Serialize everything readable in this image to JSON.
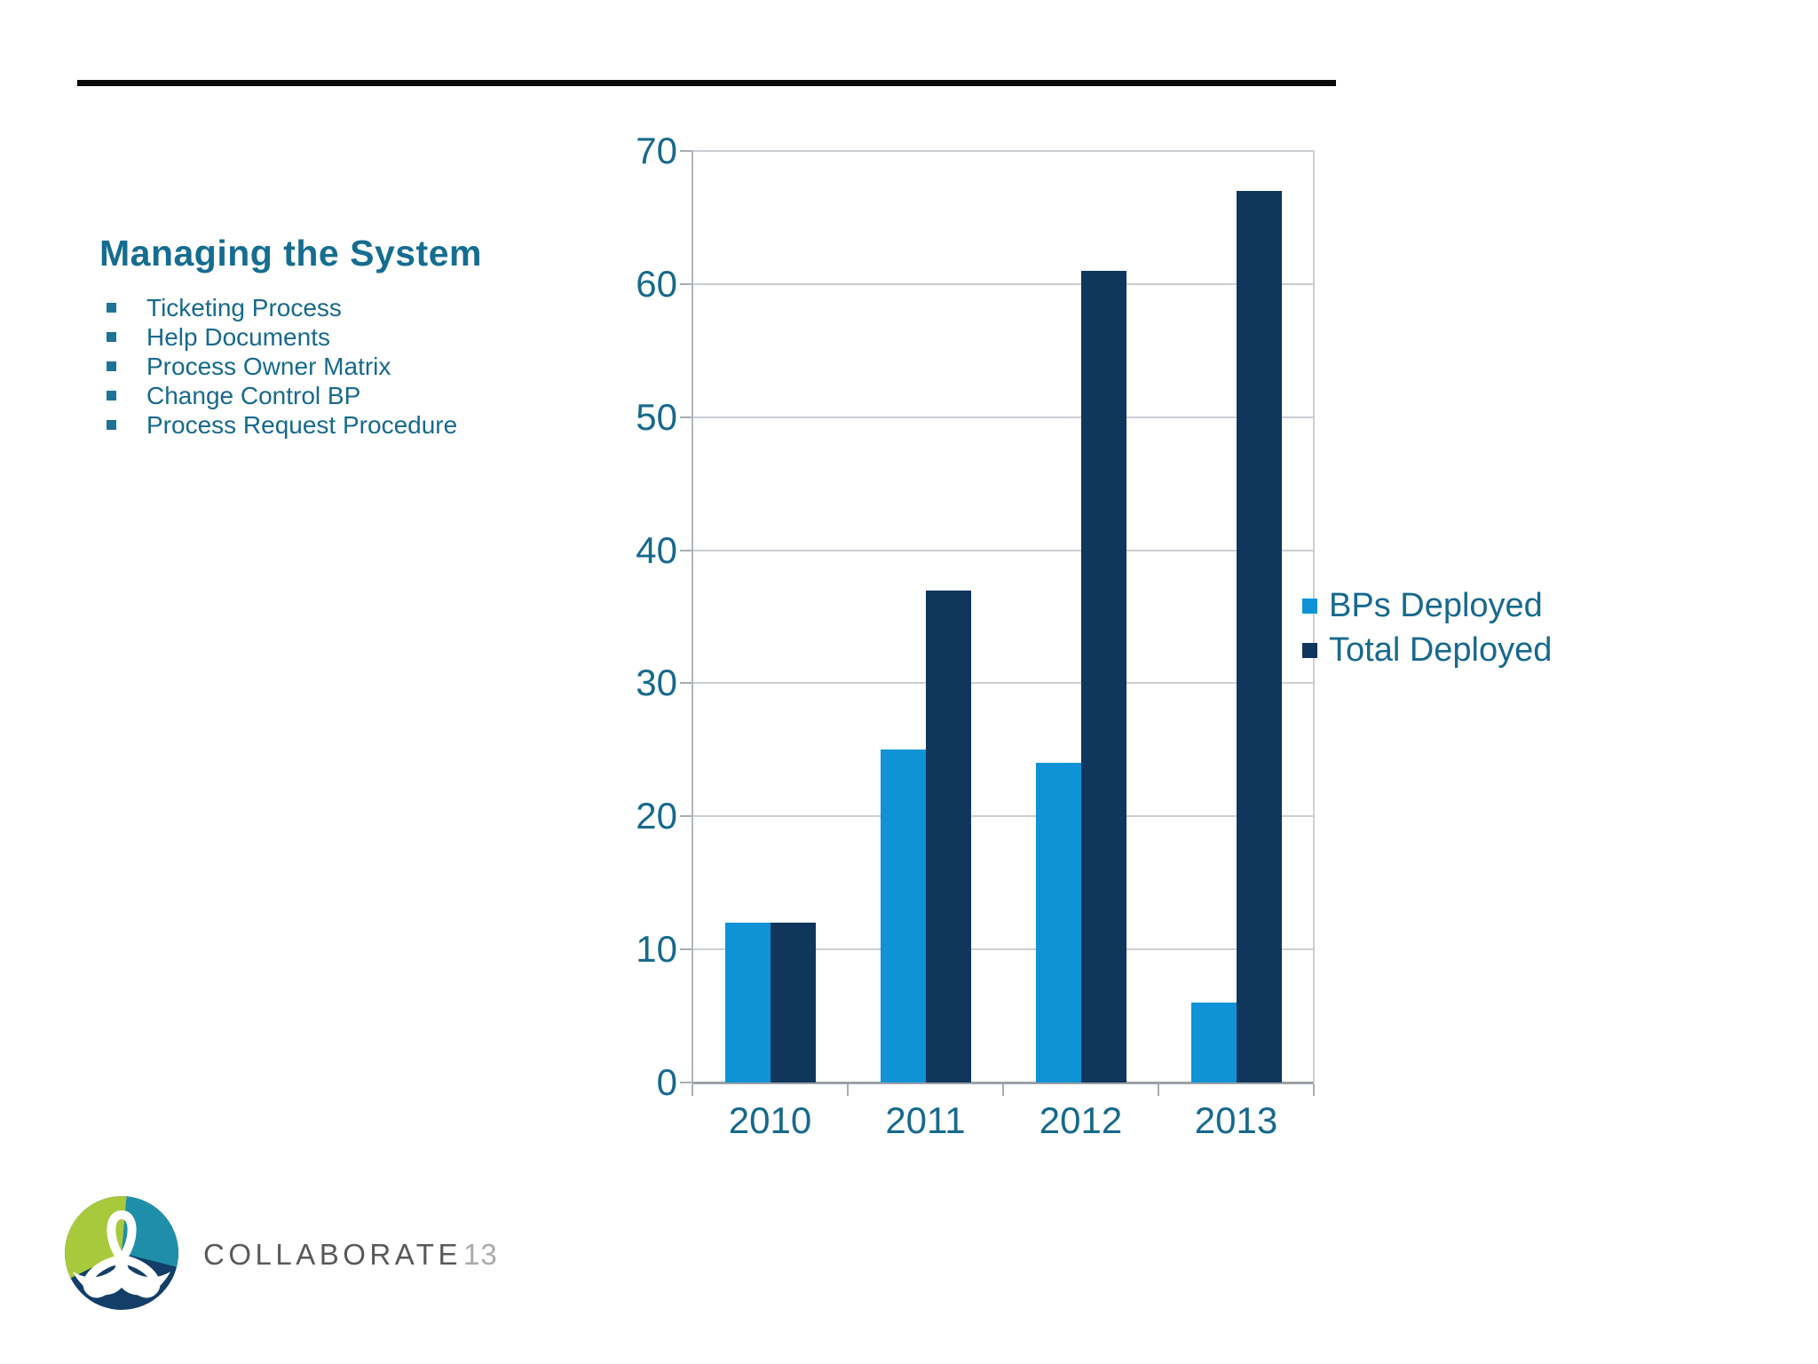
{
  "slide": {
    "title": "Managing the System",
    "bullets": [
      "Ticketing Process",
      "Help Documents",
      "Process Owner Matrix",
      "Change Control BP",
      "Process Request Procedure"
    ]
  },
  "chart_data": {
    "type": "bar",
    "title": "",
    "categories": [
      "2010",
      "2011",
      "2012",
      "2013"
    ],
    "series": [
      {
        "name": "BPs Deployed",
        "color": "#0f93d6",
        "values": [
          12,
          25,
          24,
          6
        ]
      },
      {
        "name": "Total Deployed",
        "color": "#10365c",
        "values": [
          12,
          37,
          61,
          67
        ]
      }
    ],
    "ylim": [
      0,
      70
    ],
    "yticks": [
      0,
      10,
      20,
      30,
      40,
      50,
      60,
      70
    ],
    "grid": true,
    "legend_position": "right",
    "xlabel": "",
    "ylabel": ""
  },
  "footer": {
    "logo_text": "COLLABORATE",
    "logo_year": "13"
  },
  "colors": {
    "title_text": "#156d90",
    "body_text": "#17698c",
    "bullet_square": "#1f7396",
    "top_rule": "#0a0a0a",
    "gridline": "#cacfd4",
    "axis_line": "#9ba1a7",
    "tick_mark": "#a6acb2",
    "series1": "#0f93d6",
    "series2": "#10365c",
    "logo_lime": "#a9c93d",
    "logo_teal": "#1f8fa9",
    "logo_navy": "#123e68",
    "logo_text_gray": "#58595b",
    "logo_year_gray": "#a8aaad"
  }
}
